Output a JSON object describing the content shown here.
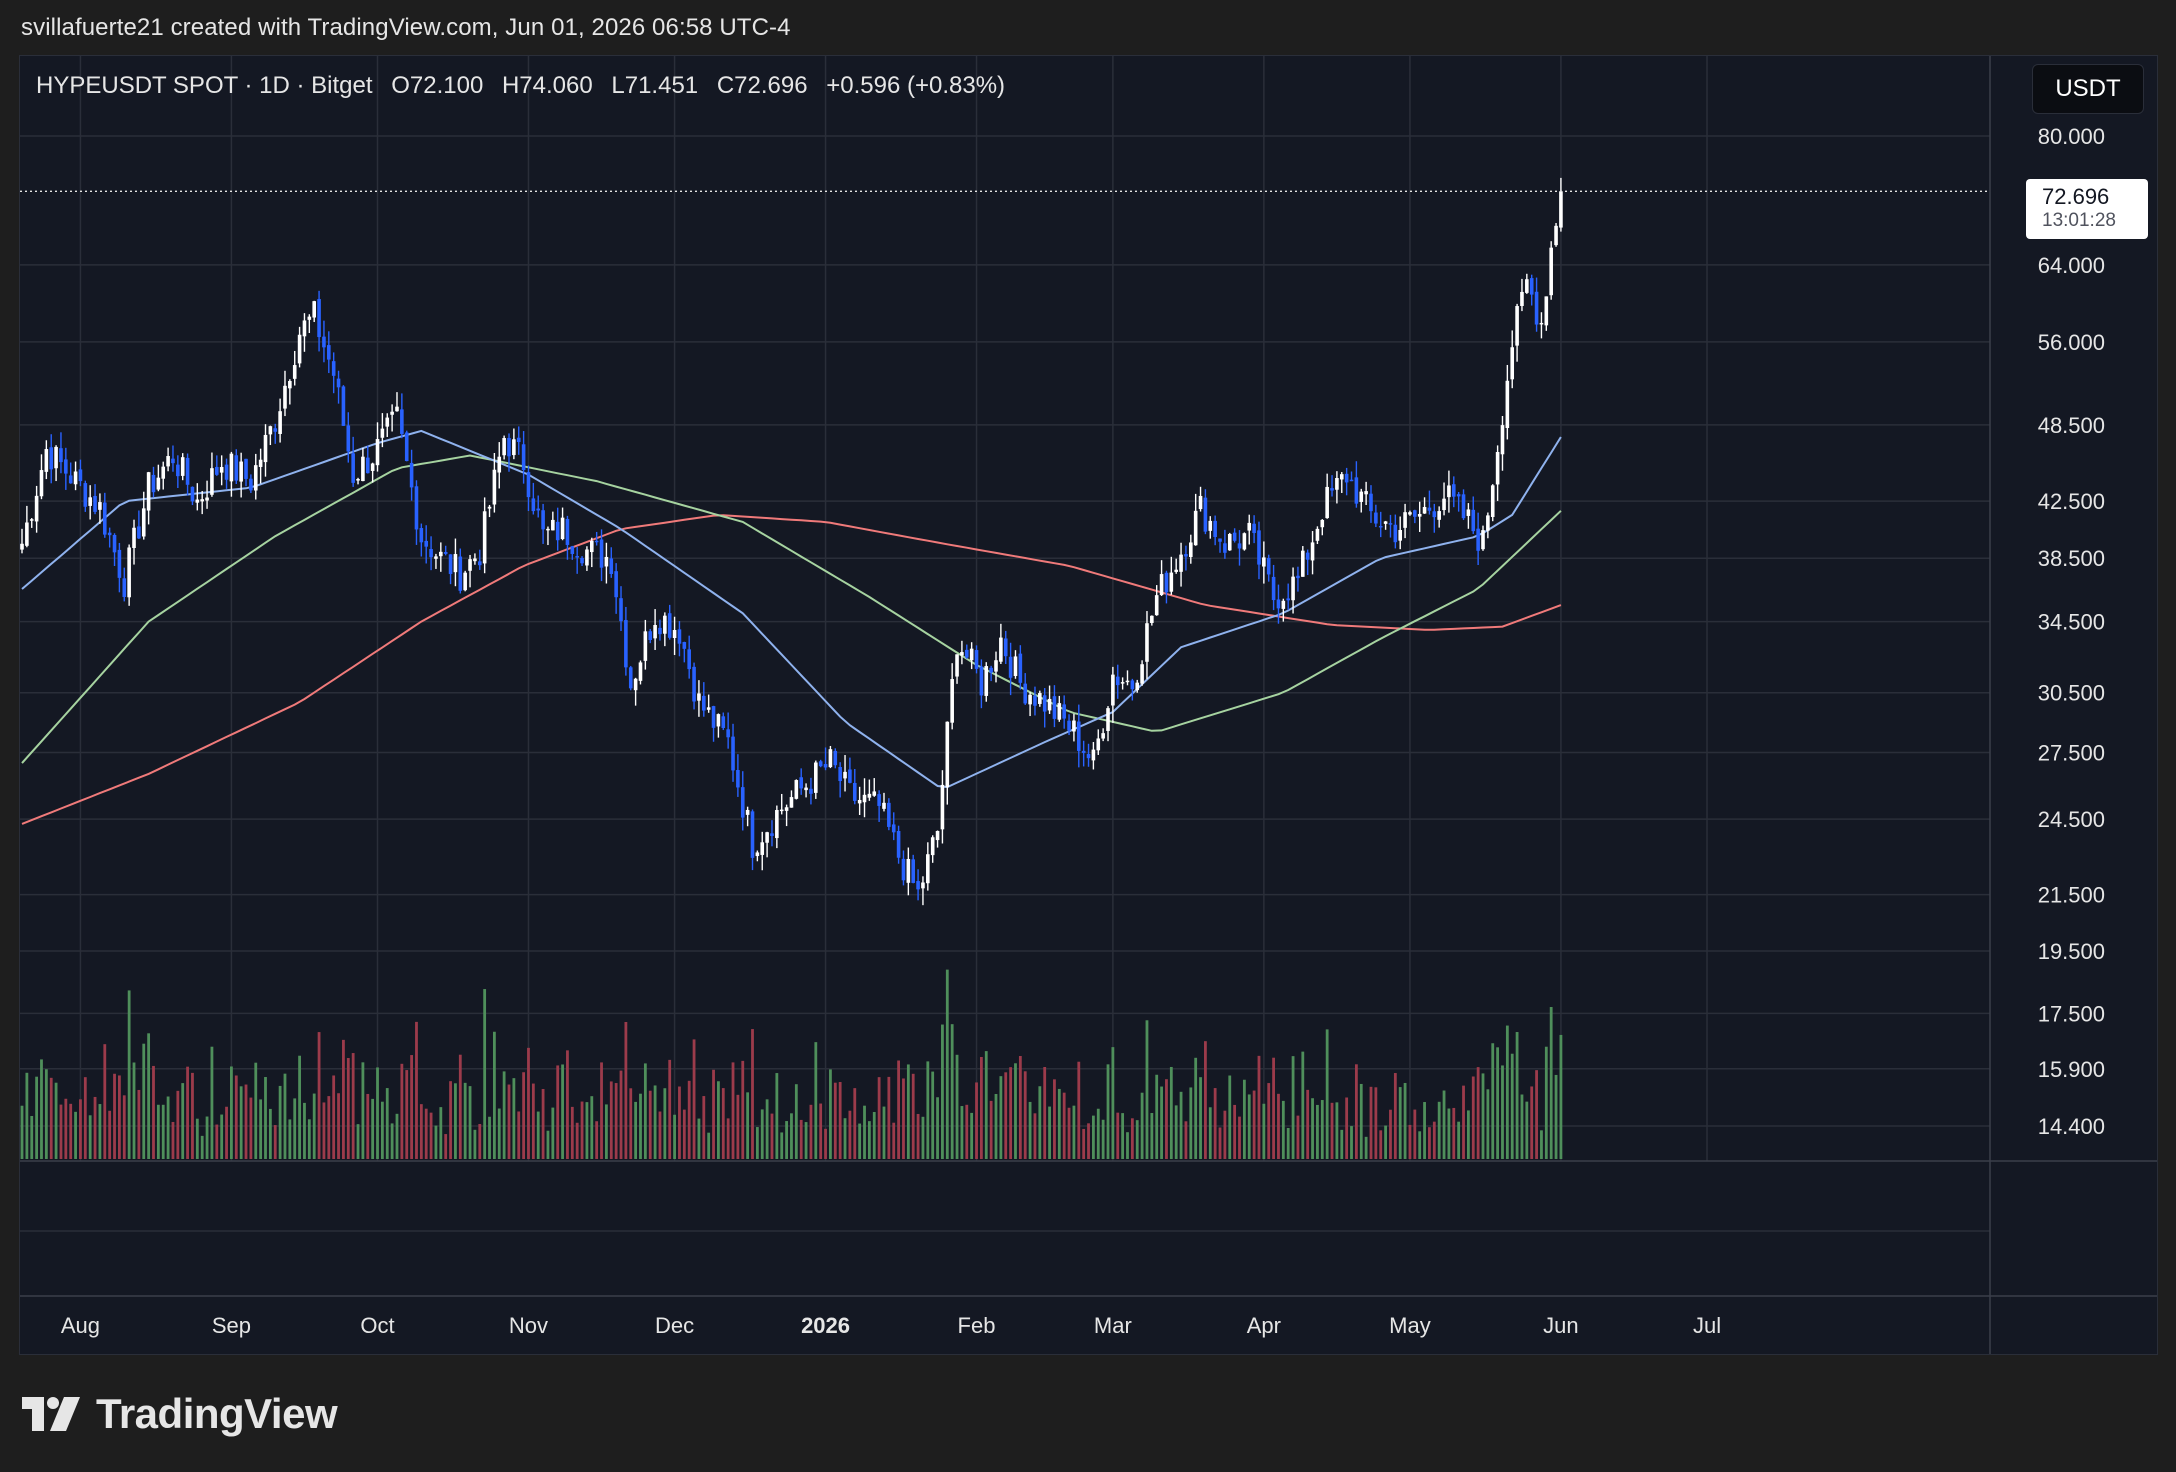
{
  "header": {
    "attribution": "svillafuerte21 created with TradingView.com, Jun 01, 2026 06:58 UTC-4"
  },
  "legend": {
    "symbol": "HYPEUSDT SPOT · 1D · Bitget",
    "open": "O72.100",
    "high": "H74.060",
    "low": "L71.451",
    "close": "C72.696",
    "change": "+0.596 (+0.83%)"
  },
  "currency_button": "USDT",
  "last_price": {
    "price": "72.696",
    "countdown": "13:01:28"
  },
  "brand": {
    "name": "TradingView"
  },
  "colors": {
    "background": "#141823",
    "grid": "#2a2e39",
    "candle": "#ffffff",
    "candle_down": "#2962ff",
    "ma_fast": "#8fb2ee",
    "ma_mid": "#a6d3a0",
    "ma_slow": "#f07a7a",
    "volume_up": "#4f8f5b",
    "volume_down": "#9c3b4b"
  },
  "chart_data": {
    "type": "candlestick",
    "scale": "log",
    "y_ticks": [
      "80.000",
      "64.000",
      "56.000",
      "48.500",
      "42.500",
      "38.500",
      "34.500",
      "30.500",
      "27.500",
      "24.500",
      "21.500",
      "19.500",
      "17.500",
      "15.900",
      "14.400"
    ],
    "x_ticks": [
      {
        "label": "Aug",
        "bold": false
      },
      {
        "label": "Sep",
        "bold": false
      },
      {
        "label": "Oct",
        "bold": false
      },
      {
        "label": "Nov",
        "bold": false
      },
      {
        "label": "Dec",
        "bold": false
      },
      {
        "label": "2026",
        "bold": true
      },
      {
        "label": "Feb",
        "bold": false
      },
      {
        "label": "Mar",
        "bold": false
      },
      {
        "label": "Apr",
        "bold": false
      },
      {
        "label": "May",
        "bold": false
      },
      {
        "label": "Jun",
        "bold": false
      },
      {
        "label": "Jul",
        "bold": false
      }
    ],
    "approx_close_path": [
      [
        "2025-07-20",
        39.5
      ],
      [
        "2025-07-25",
        46.5
      ],
      [
        "2025-07-31",
        44.0
      ],
      [
        "2025-08-05",
        42.0
      ],
      [
        "2025-08-10",
        37.0
      ],
      [
        "2025-08-15",
        43.5
      ],
      [
        "2025-08-20",
        46.0
      ],
      [
        "2025-08-25",
        42.5
      ],
      [
        "2025-08-30",
        45.5
      ],
      [
        "2025-09-05",
        44.0
      ],
      [
        "2025-09-10",
        49.0
      ],
      [
        "2025-09-15",
        57.0
      ],
      [
        "2025-09-18",
        58.5
      ],
      [
        "2025-09-22",
        53.0
      ],
      [
        "2025-09-26",
        44.5
      ],
      [
        "2025-09-30",
        46.0
      ],
      [
        "2025-10-05",
        49.0
      ],
      [
        "2025-10-10",
        40.0
      ],
      [
        "2025-10-14",
        38.5
      ],
      [
        "2025-10-18",
        37.5
      ],
      [
        "2025-10-22",
        39.0
      ],
      [
        "2025-10-27",
        47.5
      ],
      [
        "2025-10-31",
        45.5
      ],
      [
        "2025-11-04",
        40.0
      ],
      [
        "2025-11-08",
        40.5
      ],
      [
        "2025-11-13",
        39.0
      ],
      [
        "2025-11-18",
        38.5
      ],
      [
        "2025-11-22",
        31.0
      ],
      [
        "2025-11-27",
        35.0
      ],
      [
        "2025-12-02",
        34.0
      ],
      [
        "2025-12-06",
        30.0
      ],
      [
        "2025-12-12",
        28.0
      ],
      [
        "2025-12-17",
        23.5
      ],
      [
        "2025-12-23",
        25.0
      ],
      [
        "2025-12-28",
        26.0
      ],
      [
        "2026-01-02",
        27.0
      ],
      [
        "2026-01-06",
        25.5
      ],
      [
        "2026-01-12",
        25.0
      ],
      [
        "2026-01-16",
        23.0
      ],
      [
        "2026-01-20",
        21.5
      ],
      [
        "2026-01-24",
        24.0
      ],
      [
        "2026-01-28",
        33.5
      ],
      [
        "2026-02-02",
        31.0
      ],
      [
        "2026-02-06",
        33.5
      ],
      [
        "2026-02-10",
        31.0
      ],
      [
        "2026-02-15",
        30.0
      ],
      [
        "2026-02-21",
        28.5
      ],
      [
        "2026-02-25",
        27.0
      ],
      [
        "2026-03-01",
        31.5
      ],
      [
        "2026-03-05",
        31.0
      ],
      [
        "2026-03-10",
        36.0
      ],
      [
        "2026-03-15",
        39.0
      ],
      [
        "2026-03-19",
        42.0
      ],
      [
        "2026-03-24",
        39.5
      ],
      [
        "2026-03-29",
        40.0
      ],
      [
        "2026-04-03",
        36.0
      ],
      [
        "2026-04-08",
        37.0
      ],
      [
        "2026-04-13",
        42.0
      ],
      [
        "2026-04-18",
        44.5
      ],
      [
        "2026-04-23",
        41.5
      ],
      [
        "2026-04-28",
        40.5
      ],
      [
        "2026-05-03",
        41.5
      ],
      [
        "2026-05-08",
        43.0
      ],
      [
        "2026-05-13",
        41.0
      ],
      [
        "2026-05-16",
        39.5
      ],
      [
        "2026-05-19",
        47.0
      ],
      [
        "2026-05-22",
        56.0
      ],
      [
        "2026-05-25",
        62.0
      ],
      [
        "2026-05-28",
        58.0
      ],
      [
        "2026-05-30",
        66.0
      ],
      [
        "2026-06-01",
        72.696
      ]
    ],
    "ma_fast_path": [
      [
        "2025-07-20",
        36.5
      ],
      [
        "2025-08-10",
        42.5
      ],
      [
        "2025-09-05",
        43.5
      ],
      [
        "2025-10-01",
        47.0
      ],
      [
        "2025-10-10",
        48.0
      ],
      [
        "2025-11-01",
        44.5
      ],
      [
        "2025-11-20",
        40.5
      ],
      [
        "2025-12-15",
        35.0
      ],
      [
        "2026-01-05",
        29.0
      ],
      [
        "2026-01-25",
        25.8
      ],
      [
        "2026-02-15",
        28.0
      ],
      [
        "2026-03-01",
        29.5
      ],
      [
        "2026-03-15",
        33.0
      ],
      [
        "2026-04-05",
        35.0
      ],
      [
        "2026-04-25",
        38.5
      ],
      [
        "2026-05-15",
        40.0
      ],
      [
        "2026-05-22",
        41.5
      ],
      [
        "2026-06-01",
        47.5
      ]
    ],
    "ma_mid_path": [
      [
        "2025-07-20",
        27.0
      ],
      [
        "2025-08-15",
        34.5
      ],
      [
        "2025-09-10",
        40.0
      ],
      [
        "2025-10-05",
        45.0
      ],
      [
        "2025-10-20",
        46.0
      ],
      [
        "2025-11-15",
        44.0
      ],
      [
        "2025-12-15",
        41.0
      ],
      [
        "2026-01-10",
        36.0
      ],
      [
        "2026-02-01",
        32.0
      ],
      [
        "2026-02-20",
        29.5
      ],
      [
        "2026-03-10",
        28.5
      ],
      [
        "2026-04-05",
        30.5
      ],
      [
        "2026-04-25",
        33.5
      ],
      [
        "2026-05-15",
        36.5
      ],
      [
        "2026-06-01",
        41.8
      ]
    ],
    "ma_slow_path": [
      [
        "2025-07-20",
        24.3
      ],
      [
        "2025-08-15",
        26.5
      ],
      [
        "2025-09-15",
        30.0
      ],
      [
        "2025-10-10",
        34.5
      ],
      [
        "2025-10-31",
        38.0
      ],
      [
        "2025-11-20",
        40.5
      ],
      [
        "2025-12-10",
        41.5
      ],
      [
        "2026-01-01",
        41.0
      ],
      [
        "2026-01-25",
        39.5
      ],
      [
        "2026-02-20",
        38.0
      ],
      [
        "2026-03-20",
        35.5
      ],
      [
        "2026-04-15",
        34.3
      ],
      [
        "2026-05-05",
        34.0
      ],
      [
        "2026-05-20",
        34.2
      ],
      [
        "2026-06-01",
        35.5
      ]
    ]
  }
}
